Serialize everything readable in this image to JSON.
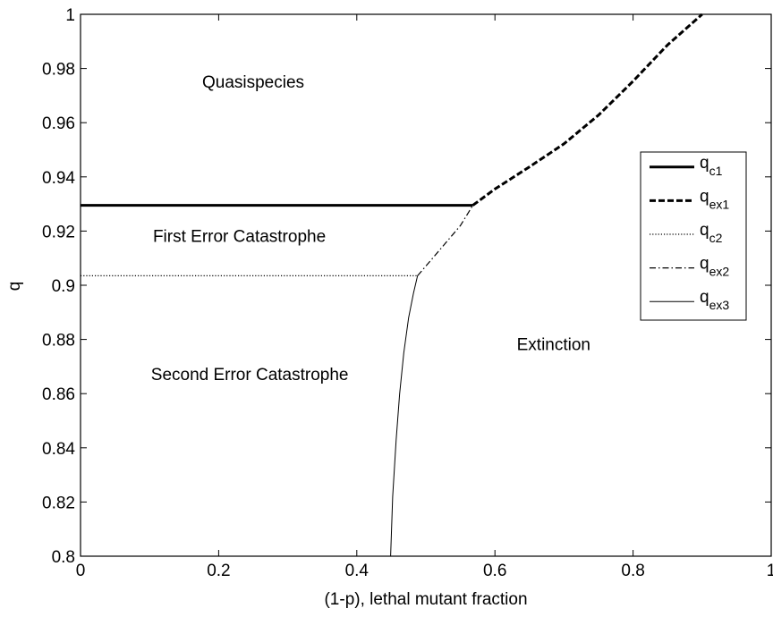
{
  "chart_data": {
    "type": "line",
    "xlabel": "(1-p), lethal mutant fraction",
    "ylabel": "q",
    "xlim": [
      0,
      1
    ],
    "ylim": [
      0.8,
      1
    ],
    "xticks": [
      "0",
      "0.2",
      "0.4",
      "0.6",
      "0.8",
      "1"
    ],
    "yticks": [
      "0.8",
      "0.82",
      "0.84",
      "0.86",
      "0.88",
      "0.9",
      "0.92",
      "0.94",
      "0.96",
      "0.98",
      "1"
    ],
    "grid": false,
    "legend_position": "right",
    "series": [
      {
        "key": "qc1",
        "legend_main": "q",
        "legend_sub": "c1",
        "style": "solid-thick",
        "x": [
          0,
          0.568
        ],
        "y": [
          0.9295,
          0.9295
        ]
      },
      {
        "key": "qex1",
        "legend_main": "q",
        "legend_sub": "ex1",
        "style": "dashed-thick",
        "x": [
          0.568,
          0.6,
          0.65,
          0.7,
          0.75,
          0.8,
          0.85,
          0.9
        ],
        "y": [
          0.9295,
          0.9355,
          0.9437,
          0.9522,
          0.9628,
          0.9753,
          0.9887,
          1.0
        ]
      },
      {
        "key": "qc2",
        "legend_main": "q",
        "legend_sub": "c2",
        "style": "dotted",
        "x": [
          0,
          0.488
        ],
        "y": [
          0.9035,
          0.9035
        ]
      },
      {
        "key": "qex2",
        "legend_main": "q",
        "legend_sub": "ex2",
        "style": "dashdot",
        "x": [
          0.488,
          0.52,
          0.55,
          0.568
        ],
        "y": [
          0.9035,
          0.913,
          0.922,
          0.9295
        ]
      },
      {
        "key": "qex3",
        "legend_main": "q",
        "legend_sub": "ex3",
        "style": "solid-thin",
        "x": [
          0.449,
          0.452,
          0.457,
          0.462,
          0.468,
          0.475,
          0.482,
          0.488
        ],
        "y": [
          0.8,
          0.822,
          0.843,
          0.86,
          0.875,
          0.888,
          0.897,
          0.9035
        ]
      }
    ],
    "annotations": [
      {
        "text": "Quasispecies",
        "x": 0.25,
        "y": 0.973
      },
      {
        "text": "First Error Catastrophe",
        "x": 0.23,
        "y": 0.916
      },
      {
        "text": "Second Error Catastrophe",
        "x": 0.245,
        "y": 0.865
      },
      {
        "text": "Extinction",
        "x": 0.685,
        "y": 0.876
      }
    ]
  }
}
